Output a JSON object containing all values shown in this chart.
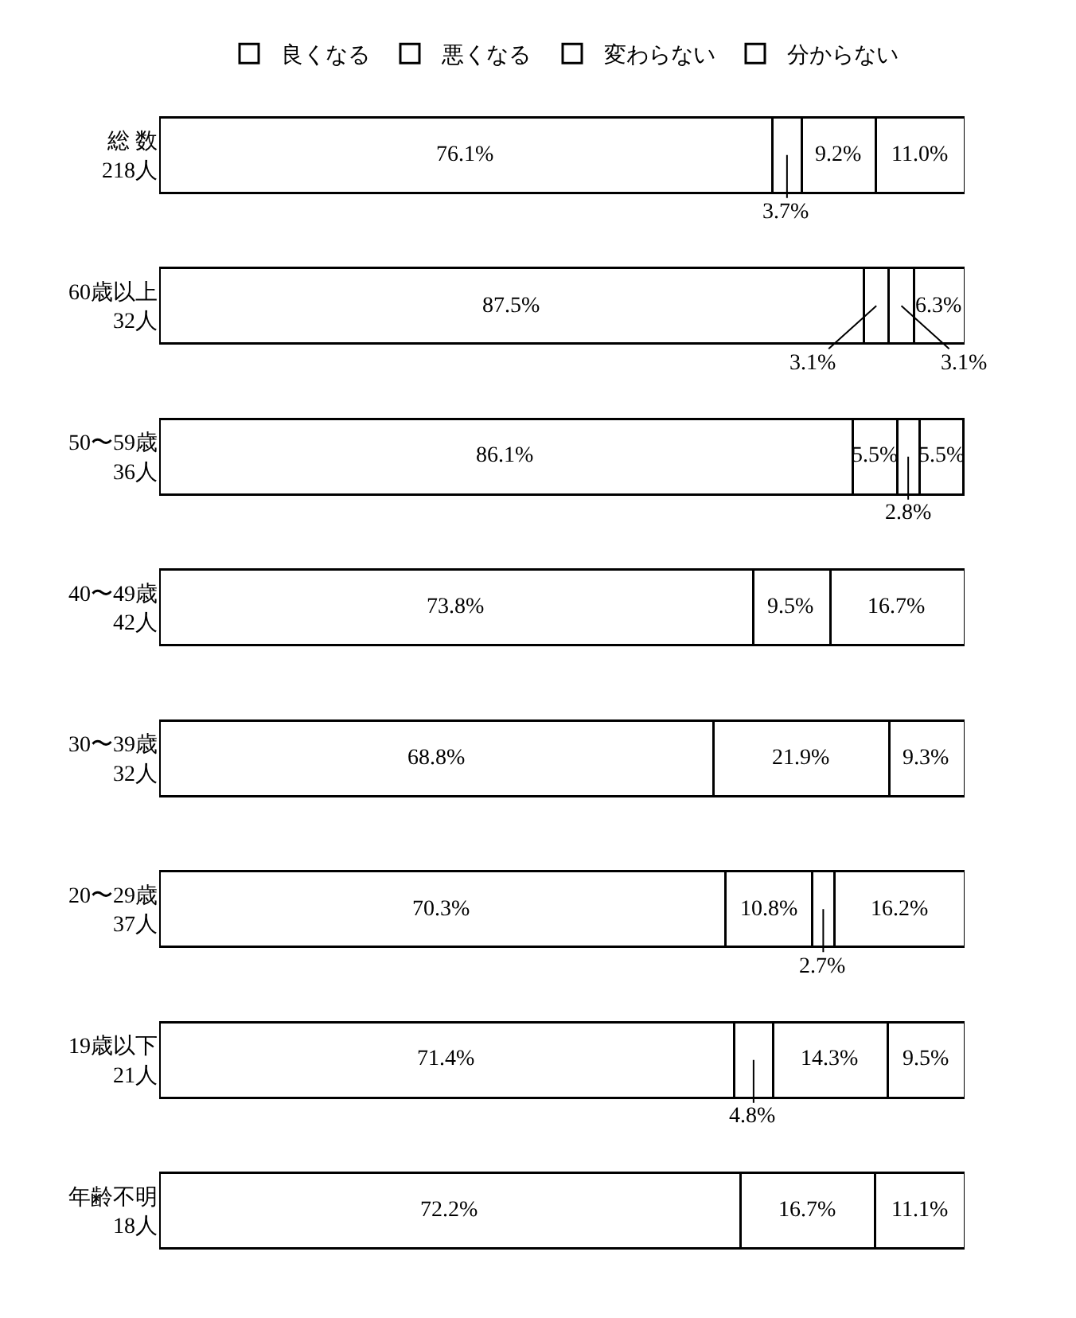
{
  "chart_data": {
    "type": "bar",
    "orientation": "horizontal",
    "stacked": true,
    "legend": "top",
    "tick_labels": "y",
    "grid": false,
    "xlim": [
      0,
      100
    ],
    "categories": [
      "総 数\n218人",
      "60歳以上\n32人",
      "50〜59歳\n36人",
      "40〜49歳\n42人",
      "30〜39歳\n32人",
      "20〜29歳\n37人",
      "19歳以下\n21人",
      "年齢不明\n18人"
    ],
    "series": [
      {
        "name": "良くなる",
        "color": "#ffffff",
        "values": [
          76.1,
          87.5,
          86.1,
          73.8,
          68.8,
          70.3,
          71.4,
          72.2
        ],
        "value_labels": [
          "76.1%",
          "87.5%",
          "86.1%",
          "73.8%",
          "68.8%",
          "70.3%",
          "71.4%",
          "72.2%"
        ]
      },
      {
        "name": "悪くなる",
        "color": "#ffffff",
        "values": [
          3.7,
          3.1,
          5.5,
          null,
          null,
          10.8,
          4.8,
          null
        ],
        "value_labels": [
          "3.7%",
          "3.1%",
          "5.5%",
          null,
          null,
          "10.8%",
          "4.8%",
          null
        ]
      },
      {
        "name": "変わらない",
        "color": "#ffffff",
        "values": [
          9.2,
          3.1,
          2.8,
          9.5,
          21.9,
          2.7,
          14.3,
          16.7
        ],
        "value_labels": [
          "9.2%",
          "3.1%",
          "2.8%",
          "9.5%",
          "21.9%",
          "2.7%",
          "14.3%",
          "16.7%"
        ]
      },
      {
        "name": "分からない",
        "color": "#ffffff",
        "values": [
          11.0,
          6.3,
          5.5,
          16.7,
          9.3,
          16.2,
          9.5,
          11.1
        ],
        "value_labels": [
          "11.0%",
          "6.3%",
          "5.5%",
          "16.7%",
          "9.3%",
          "16.2%",
          "9.5%",
          "11.1%"
        ]
      }
    ]
  }
}
